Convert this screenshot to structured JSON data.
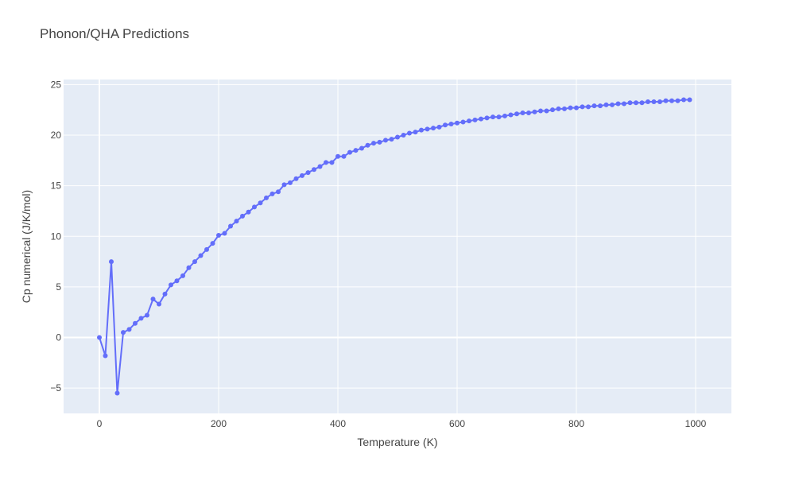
{
  "chart_data": {
    "type": "line",
    "title": "Phonon/QHA Predictions",
    "xlabel": "Temperature (K)",
    "ylabel": "Cp numerical (J/K/mol)",
    "xlim": [
      -60,
      1060
    ],
    "ylim": [
      -7.5,
      25.5
    ],
    "xticks": [
      0,
      200,
      400,
      600,
      800,
      1000
    ],
    "xtick_labels": [
      "0",
      "200",
      "400",
      "600",
      "800",
      "1000"
    ],
    "yticks": [
      -5,
      0,
      5,
      10,
      15,
      20,
      25
    ],
    "ytick_labels": [
      "−5",
      "0",
      "5",
      "10",
      "15",
      "20",
      "25"
    ],
    "grid": true,
    "plot_background": "#e5ecf6",
    "series_color": "#636efa",
    "x": [
      0,
      10,
      20,
      30,
      40,
      50,
      60,
      70,
      80,
      90,
      100,
      110,
      120,
      130,
      140,
      150,
      160,
      170,
      180,
      190,
      200,
      210,
      220,
      230,
      240,
      250,
      260,
      270,
      280,
      290,
      300,
      310,
      320,
      330,
      340,
      350,
      360,
      370,
      380,
      390,
      400,
      410,
      420,
      430,
      440,
      450,
      460,
      470,
      480,
      490,
      500,
      510,
      520,
      530,
      540,
      550,
      560,
      570,
      580,
      590,
      600,
      610,
      620,
      630,
      640,
      650,
      660,
      670,
      680,
      690,
      700,
      710,
      720,
      730,
      740,
      750,
      760,
      770,
      780,
      790,
      800,
      810,
      820,
      830,
      840,
      850,
      860,
      870,
      880,
      890,
      900,
      910,
      920,
      930,
      940,
      950,
      960,
      970,
      980,
      990
    ],
    "y": [
      0,
      -1.8,
      7.5,
      -5.5,
      0.5,
      0.8,
      1.4,
      1.9,
      2.2,
      3.8,
      3.3,
      4.3,
      5.2,
      5.6,
      6.1,
      6.9,
      7.5,
      8.1,
      8.7,
      9.3,
      10.1,
      10.3,
      11.0,
      11.5,
      12.0,
      12.4,
      12.9,
      13.3,
      13.8,
      14.2,
      14.4,
      15.1,
      15.3,
      15.7,
      16.0,
      16.3,
      16.6,
      16.9,
      17.3,
      17.3,
      17.9,
      17.9,
      18.3,
      18.5,
      18.7,
      19.0,
      19.2,
      19.3,
      19.5,
      19.6,
      19.8,
      20.0,
      20.2,
      20.3,
      20.5,
      20.6,
      20.7,
      20.8,
      21.0,
      21.1,
      21.2,
      21.3,
      21.4,
      21.5,
      21.6,
      21.7,
      21.8,
      21.8,
      21.9,
      22.0,
      22.1,
      22.2,
      22.2,
      22.3,
      22.4,
      22.4,
      22.5,
      22.6,
      22.6,
      22.7,
      22.7,
      22.8,
      22.8,
      22.9,
      22.9,
      23.0,
      23.0,
      23.1,
      23.1,
      23.2,
      23.2,
      23.2,
      23.3,
      23.3,
      23.3,
      23.4,
      23.4,
      23.4,
      23.5,
      23.5
    ]
  }
}
